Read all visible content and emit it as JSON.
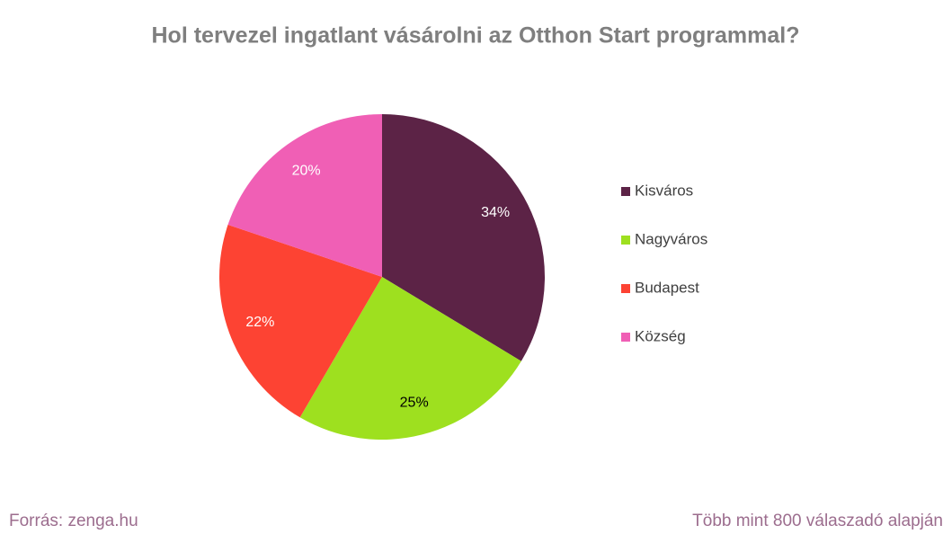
{
  "chart_data": {
    "type": "pie",
    "title": "Hol tervezel ingatlant vásárolni az Otthon Start programmal?",
    "categories": [
      "Kisváros",
      "Nagyváros",
      "Budapest",
      "Község"
    ],
    "values": [
      34,
      25,
      22,
      20
    ],
    "value_labels": [
      "34%",
      "25%",
      "22%",
      "20%"
    ],
    "colors": [
      "#5c2346",
      "#9ee01f",
      "#fd4333",
      "#f05fb5"
    ],
    "legend": "right"
  },
  "footer": {
    "source": "Forrás: zenga.hu",
    "note": "Több mint 800 válaszadó alapján"
  }
}
